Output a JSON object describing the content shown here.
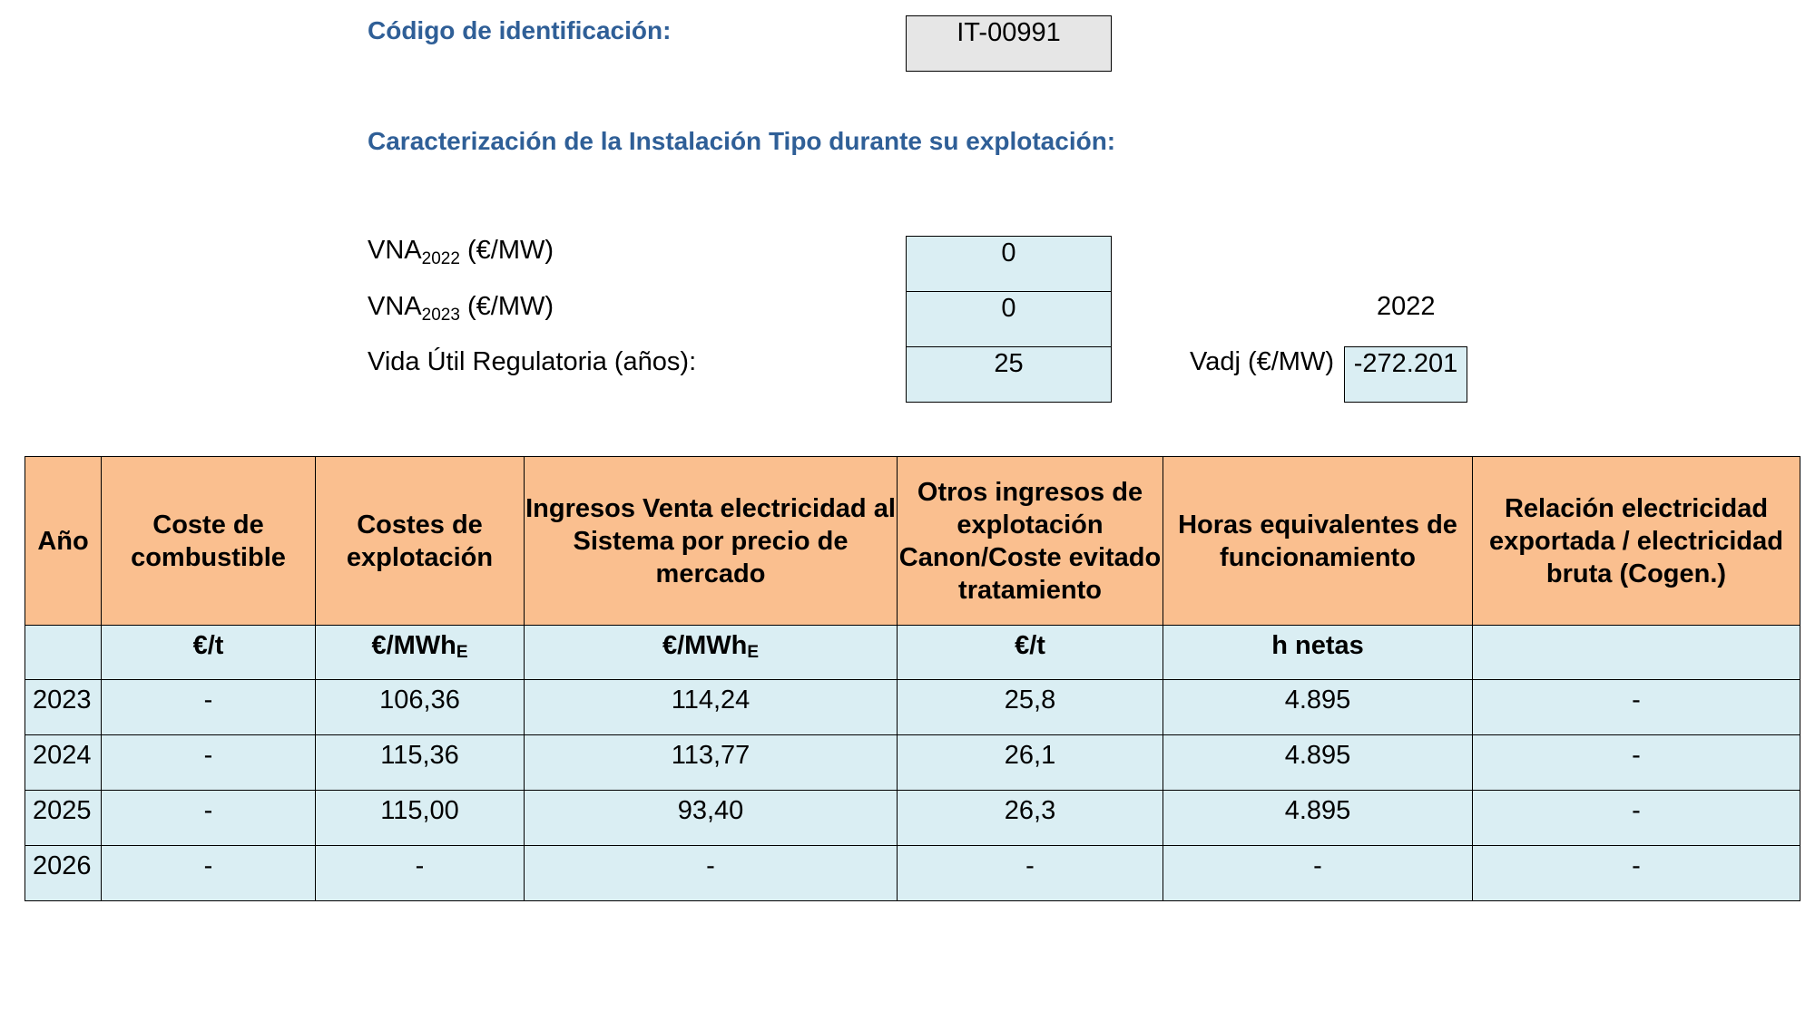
{
  "header": {
    "id_label": "Código de identificación:",
    "id_value": "IT-00991",
    "subtitle": "Caracterización de la Instalación Tipo durante su explotación:"
  },
  "params": {
    "vna2022": {
      "base": "VNA",
      "sub": "2022",
      "unit": " (€/MW)",
      "value": "0"
    },
    "vna2023": {
      "base": "VNA",
      "sub": "2023",
      "unit": " (€/MW)",
      "value": "0"
    },
    "year_ref": "2022",
    "vida_util": {
      "label": "Vida Útil Regulatoria (años):",
      "value": "25"
    },
    "vadj": {
      "label": "Vadj (€/MW)",
      "value": "-272.201"
    }
  },
  "table": {
    "headers": [
      "Año",
      "Coste de combustible",
      "Costes de explotación",
      "Ingresos Venta electricidad al Sistema por precio de mercado",
      "Otros ingresos de explotación Canon/Coste evitado tratamiento",
      "Horas equivalentes de funcionamiento",
      "Relación electricidad exportada / electricidad bruta (Cogen.)"
    ],
    "units": [
      {
        "main": "",
        "sub": ""
      },
      {
        "main": "€/t",
        "sub": ""
      },
      {
        "main": "€/MWh",
        "sub": "E"
      },
      {
        "main": "€/MWh",
        "sub": "E"
      },
      {
        "main": "€/t",
        "sub": ""
      },
      {
        "main": "h netas",
        "sub": ""
      },
      {
        "main": "",
        "sub": ""
      }
    ],
    "rows": [
      [
        "2023",
        "-",
        "106,36",
        "114,24",
        "25,8",
        "4.895",
        "-"
      ],
      [
        "2024",
        "-",
        "115,36",
        "113,77",
        "26,1",
        "4.895",
        "-"
      ],
      [
        "2025",
        "-",
        "115,00",
        "93,40",
        "26,3",
        "4.895",
        "-"
      ],
      [
        "2026",
        "-",
        "-",
        "-",
        "-",
        "-",
        "-"
      ]
    ]
  }
}
